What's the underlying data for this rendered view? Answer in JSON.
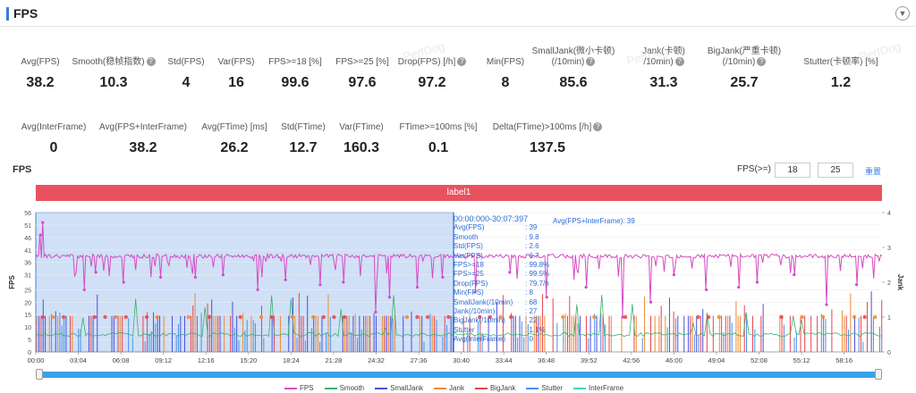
{
  "header": {
    "title": "FPS"
  },
  "metrics_row1": [
    {
      "label": "Avg(FPS)",
      "value": "38.2",
      "help": false
    },
    {
      "label": "Smooth(稳帧指数)",
      "value": "10.3",
      "help": true
    },
    {
      "label": "Std(FPS)",
      "value": "4",
      "help": false
    },
    {
      "label": "Var(FPS)",
      "value": "16",
      "help": false
    },
    {
      "label": "FPS>=18 [%]",
      "value": "99.6",
      "help": false
    },
    {
      "label": "FPS>=25 [%]",
      "value": "97.6",
      "help": false
    },
    {
      "label": "Drop(FPS) [/h]",
      "value": "97.2",
      "help": true
    },
    {
      "label": "Min(FPS)",
      "value": "8",
      "help": false
    },
    {
      "label": "SmallJank(微小卡顿)",
      "label2": "(/10min)",
      "value": "85.6",
      "help": true
    },
    {
      "label": "Jank(卡顿)",
      "label2": "/10min)",
      "value": "31.3",
      "help": true
    },
    {
      "label": "BigJank(严重卡顿)",
      "label2": "(/10min)",
      "value": "25.7",
      "help": true
    },
    {
      "label": "Stutter(卡顿率) [%]",
      "value": "1.2",
      "help": false
    }
  ],
  "metrics_row2": [
    {
      "label": "Avg(InterFrame)",
      "value": "0",
      "help": false
    },
    {
      "label": "Avg(FPS+InterFrame)",
      "value": "38.2",
      "help": false
    },
    {
      "label": "Avg(FTime) [ms]",
      "value": "26.2",
      "help": false
    },
    {
      "label": "Std(FTime)",
      "value": "12.7",
      "help": false
    },
    {
      "label": "Var(FTime)",
      "value": "160.3",
      "help": false
    },
    {
      "label": "FTime>=100ms [%]",
      "value": "0.1",
      "help": false
    },
    {
      "label": "Delta(FTime)>100ms [/h]",
      "value": "137.5",
      "help": true
    }
  ],
  "chart_header": {
    "title": "FPS",
    "fps_label": "FPS(>=)",
    "fps_low": "18",
    "fps_high": "25",
    "reset": "重置",
    "band_label": "label1"
  },
  "tooltip": {
    "range": "00:00:000-30:07:397",
    "extra": "Avg(FPS+InterFrame): 39",
    "rows": [
      {
        "k": "Avg(FPS)",
        "v": ": 39"
      },
      {
        "k": "Smooth",
        "v": ": 9.8"
      },
      {
        "k": "Std(FPS)",
        "v": ": 2.6"
      },
      {
        "k": "Var(FPS)",
        "v": ": 6.7"
      },
      {
        "k": "FPS>=18",
        "v": ": 99.8%"
      },
      {
        "k": "FPS>=25",
        "v": ": 99.5%"
      },
      {
        "k": "Drop(FPS)",
        "v": ": 79.7/h"
      },
      {
        "k": "Min(FPS)",
        "v": ": 8"
      },
      {
        "k": "SmallJank(/10min)",
        "v": ": 68"
      },
      {
        "k": "Jank(/10min)",
        "v": ": 27"
      },
      {
        "k": "BigJank(/10min)",
        "v": ": 22"
      },
      {
        "k": "Stutter",
        "v": ": 1.1%"
      },
      {
        "k": "Avg(InterFrame)",
        "v": ": 0"
      }
    ]
  },
  "legend": [
    {
      "name": "FPS",
      "color": "#d64bc4"
    },
    {
      "name": "Smooth",
      "color": "#3ab06a"
    },
    {
      "name": "SmallJank",
      "color": "#4d4fd6"
    },
    {
      "name": "Jank",
      "color": "#f08a33"
    },
    {
      "name": "BigJank",
      "color": "#e8434d"
    },
    {
      "name": "Stutter",
      "color": "#4a90e8"
    },
    {
      "name": "InterFrame",
      "color": "#3dd6b8"
    }
  ],
  "chart_data": {
    "type": "line",
    "ylabel": "FPS",
    "y2label": "Jank",
    "ylim": [
      0,
      56
    ],
    "y2lim": [
      0,
      4
    ],
    "yticks": [
      0,
      5,
      10,
      15,
      20,
      25,
      31,
      36,
      41,
      46,
      51,
      56
    ],
    "y2ticks": [
      0,
      1,
      2,
      3,
      4
    ],
    "xticks": [
      "00:00",
      "03:04",
      "06:08",
      "09:12",
      "12:16",
      "15:20",
      "18:24",
      "21:28",
      "24:32",
      "27:36",
      "30:40",
      "33:44",
      "36:48",
      "39:52",
      "42:56",
      "46:00",
      "49:04",
      "52:08",
      "55:12",
      "58:16"
    ],
    "x_end_seconds": 3660,
    "selection_seconds": [
      0,
      1807
    ],
    "series": [
      {
        "name": "FPS",
        "baseline": 38.5,
        "dips": [
          [
            20,
            47
          ],
          [
            30,
            52
          ],
          [
            210,
            25
          ],
          [
            260,
            32
          ],
          [
            380,
            28
          ],
          [
            540,
            30
          ],
          [
            690,
            30
          ],
          [
            810,
            31
          ],
          [
            960,
            25
          ],
          [
            1080,
            29
          ],
          [
            1230,
            27
          ],
          [
            1330,
            28
          ],
          [
            1470,
            16
          ],
          [
            1530,
            22
          ],
          [
            1650,
            26
          ],
          [
            1760,
            30
          ],
          [
            1900,
            24
          ],
          [
            2050,
            32
          ],
          [
            2210,
            22
          ],
          [
            2380,
            26
          ],
          [
            2540,
            14
          ],
          [
            2660,
            20
          ],
          [
            2760,
            31
          ],
          [
            2900,
            25
          ],
          [
            3040,
            26
          ],
          [
            3120,
            28
          ],
          [
            3280,
            31
          ],
          [
            3420,
            19
          ],
          [
            3550,
            27
          ]
        ]
      },
      {
        "name": "Smooth",
        "baseline": 7
      },
      {
        "name": "SmallJank",
        "level": 1
      },
      {
        "name": "Jank",
        "level": 1
      },
      {
        "name": "BigJank",
        "level": 1
      },
      {
        "name": "Stutter",
        "level": 0
      }
    ]
  }
}
